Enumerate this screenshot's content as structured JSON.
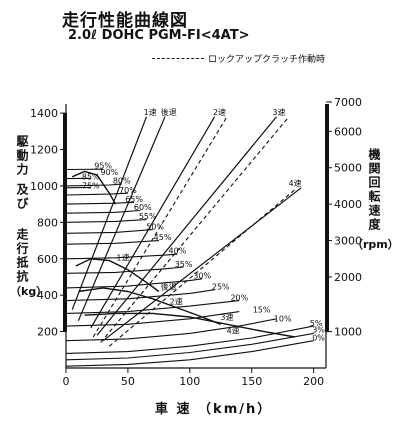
{
  "page": {
    "title": "走行性能曲線図",
    "subtitle": "2.0ℓ DOHC PGM-FI<4AT>",
    "legend_lockup": "ロックアップクラッチ作動時"
  },
  "chart_data": {
    "type": "line",
    "title": "走行性能曲線図",
    "subtitle": "2.0ℓ DOHC PGM-FI<4AT>",
    "xlabel": "車 速 （km/h）",
    "ylabel_left_1": "駆動力 及び",
    "ylabel_left_2": "走行抵抗",
    "ylabel_left_unit": "（kg）",
    "ylabel_right": "機関回転速度",
    "ylabel_right_unit": "（rpm）",
    "xlim": [
      0,
      210
    ],
    "ylim": [
      0,
      1450
    ],
    "x_ticks": [
      0,
      50,
      100,
      150,
      200
    ],
    "y_ticks": [
      200,
      400,
      600,
      800,
      1000,
      1200,
      1400
    ],
    "rpm_ticks": [
      {
        "label": "1000",
        "y": 200
      },
      {
        "label": "2000",
        "y": 500
      },
      {
        "label": "3000",
        "y": 700
      },
      {
        "label": "4000",
        "y": 900
      },
      {
        "label": "5000",
        "y": 1100
      },
      {
        "label": "6000",
        "y": 1300
      },
      {
        "label": "7000",
        "y": 1500
      }
    ],
    "grid": false,
    "legend": "top",
    "gear_drive_force": [
      {
        "name": "1速",
        "x": [
          5,
          15,
          25,
          35,
          40
        ],
        "y": [
          1050,
          1080,
          1060,
          960,
          900
        ]
      },
      {
        "name": "2速",
        "x": [
          8,
          20,
          35,
          50,
          65,
          75
        ],
        "y": [
          560,
          600,
          590,
          540,
          470,
          420
        ]
      },
      {
        "name": "3速",
        "x": [
          10,
          30,
          50,
          70,
          90,
          110,
          125
        ],
        "y": [
          420,
          440,
          420,
          380,
          330,
          280,
          240
        ]
      },
      {
        "name": "4速",
        "x": [
          15,
          40,
          70,
          100,
          130,
          160,
          185
        ],
        "y": [
          290,
          300,
          300,
          280,
          240,
          200,
          170
        ]
      }
    ],
    "gear_rpm_lines": [
      {
        "name": "1速",
        "x": [
          5,
          65
        ],
        "y": [
          320,
          1380
        ],
        "label_x": 68,
        "label_y": 1390
      },
      {
        "name": "後退",
        "x": [
          10,
          80
        ],
        "y": [
          260,
          1380
        ],
        "label_x": 83,
        "label_y": 1390
      },
      {
        "name": "2速",
        "x": [
          20,
          120
        ],
        "y": [
          220,
          1380
        ],
        "label_x": 124,
        "label_y": 1390
      },
      {
        "name": "3速",
        "x": [
          25,
          170
        ],
        "y": [
          180,
          1380
        ],
        "label_x": 172,
        "label_y": 1390
      },
      {
        "name": "4速",
        "x": [
          30,
          190
        ],
        "y": [
          150,
          990
        ],
        "label_x": 185,
        "label_y": 1000
      }
    ],
    "lockup_lines": [
      {
        "x": [
          22,
          130
        ],
        "y": [
          170,
          1380
        ]
      },
      {
        "x": [
          28,
          180
        ],
        "y": [
          140,
          1380
        ]
      },
      {
        "x": [
          35,
          185
        ],
        "y": [
          120,
          980
        ]
      }
    ],
    "resistance_curves": [
      {
        "name": "0%",
        "x": [
          0,
          50,
          100,
          150,
          200
        ],
        "y": [
          10,
          20,
          45,
          90,
          150
        ]
      },
      {
        "name": "3%",
        "x": [
          0,
          50,
          100,
          150,
          200
        ],
        "y": [
          45,
          55,
          85,
          130,
          190
        ]
      },
      {
        "name": "5%",
        "x": [
          0,
          50,
          100,
          150,
          200
        ],
        "y": [
          80,
          90,
          120,
          165,
          230
        ]
      },
      {
        "name": "10%",
        "x": [
          0,
          50,
          100,
          140,
          170
        ],
        "y": [
          150,
          160,
          190,
          230,
          270
        ]
      },
      {
        "name": "15%",
        "x": [
          0,
          50,
          100,
          140
        ],
        "y": [
          230,
          240,
          270,
          310
        ]
      },
      {
        "name": "20%",
        "x": [
          0,
          50,
          100,
          140
        ],
        "y": [
          300,
          310,
          340,
          370
        ]
      },
      {
        "name": "25%",
        "x": [
          0,
          50,
          100,
          120
        ],
        "y": [
          370,
          380,
          410,
          430
        ]
      },
      {
        "name": "30%",
        "x": [
          0,
          50,
          100,
          110
        ],
        "y": [
          440,
          450,
          480,
          490
        ]
      },
      {
        "name": "35%",
        "x": [
          0,
          40,
          80,
          95
        ],
        "y": [
          520,
          525,
          545,
          555
        ]
      },
      {
        "name": "40%",
        "x": [
          0,
          40,
          80,
          90
        ],
        "y": [
          600,
          605,
          620,
          625
        ]
      },
      {
        "name": "45%",
        "x": [
          0,
          40,
          75
        ],
        "y": [
          680,
          685,
          700
        ]
      },
      {
        "name": "50%",
        "x": [
          0,
          40,
          70
        ],
        "y": [
          740,
          745,
          760
        ]
      },
      {
        "name": "55%",
        "x": [
          0,
          40,
          65
        ],
        "y": [
          800,
          805,
          815
        ]
      },
      {
        "name": "60%",
        "x": [
          0,
          40,
          60
        ],
        "y": [
          850,
          855,
          865
        ]
      },
      {
        "name": "65%",
        "x": [
          0,
          40,
          55
        ],
        "y": [
          900,
          905,
          910
        ]
      },
      {
        "name": "70%",
        "x": [
          0,
          35,
          50
        ],
        "y": [
          950,
          955,
          960
        ]
      },
      {
        "name": "75%",
        "x": [
          0,
          20
        ],
        "y": [
          990,
          992
        ]
      },
      {
        "name": "80%",
        "x": [
          0,
          35,
          45
        ],
        "y": [
          1000,
          1005,
          1010
        ]
      },
      {
        "name": "85%",
        "x": [
          0,
          20
        ],
        "y": [
          1040,
          1042
        ]
      },
      {
        "name": "95%",
        "x": [
          0,
          30
        ],
        "y": [
          1090,
          1092
        ]
      }
    ],
    "curve_labels": [
      {
        "text": "95%",
        "x": 30,
        "y": 1095
      },
      {
        "text": "90%",
        "x": 35,
        "y": 1060
      },
      {
        "text": "85%",
        "x": 20,
        "y": 1035
      },
      {
        "text": "80%",
        "x": 45,
        "y": 1012
      },
      {
        "text": "75%",
        "x": 20,
        "y": 985
      },
      {
        "text": "70%",
        "x": 50,
        "y": 962
      },
      {
        "text": "65%",
        "x": 55,
        "y": 912
      },
      {
        "text": "60%",
        "x": 62,
        "y": 868
      },
      {
        "text": "55%",
        "x": 66,
        "y": 818
      },
      {
        "text": "50%",
        "x": 72,
        "y": 762
      },
      {
        "text": "45%",
        "x": 78,
        "y": 702
      },
      {
        "text": "40%",
        "x": 90,
        "y": 628
      },
      {
        "text": "35%",
        "x": 95,
        "y": 555
      },
      {
        "text": "30%",
        "x": 110,
        "y": 492
      },
      {
        "text": "25%",
        "x": 125,
        "y": 432
      },
      {
        "text": "20%",
        "x": 140,
        "y": 372
      },
      {
        "text": "15%",
        "x": 158,
        "y": 305
      },
      {
        "text": "10%",
        "x": 175,
        "y": 255
      },
      {
        "text": "5%",
        "x": 202,
        "y": 232
      },
      {
        "text": "3%",
        "x": 204,
        "y": 195
      },
      {
        "text": "0%",
        "x": 204,
        "y": 150
      },
      {
        "text": "1速",
        "x": 46,
        "y": 590
      },
      {
        "text": "後退",
        "x": 83,
        "y": 432
      },
      {
        "text": "2速",
        "x": 89,
        "y": 348
      },
      {
        "text": "3速",
        "x": 130,
        "y": 265
      },
      {
        "text": "4速",
        "x": 135,
        "y": 190
      }
    ]
  }
}
